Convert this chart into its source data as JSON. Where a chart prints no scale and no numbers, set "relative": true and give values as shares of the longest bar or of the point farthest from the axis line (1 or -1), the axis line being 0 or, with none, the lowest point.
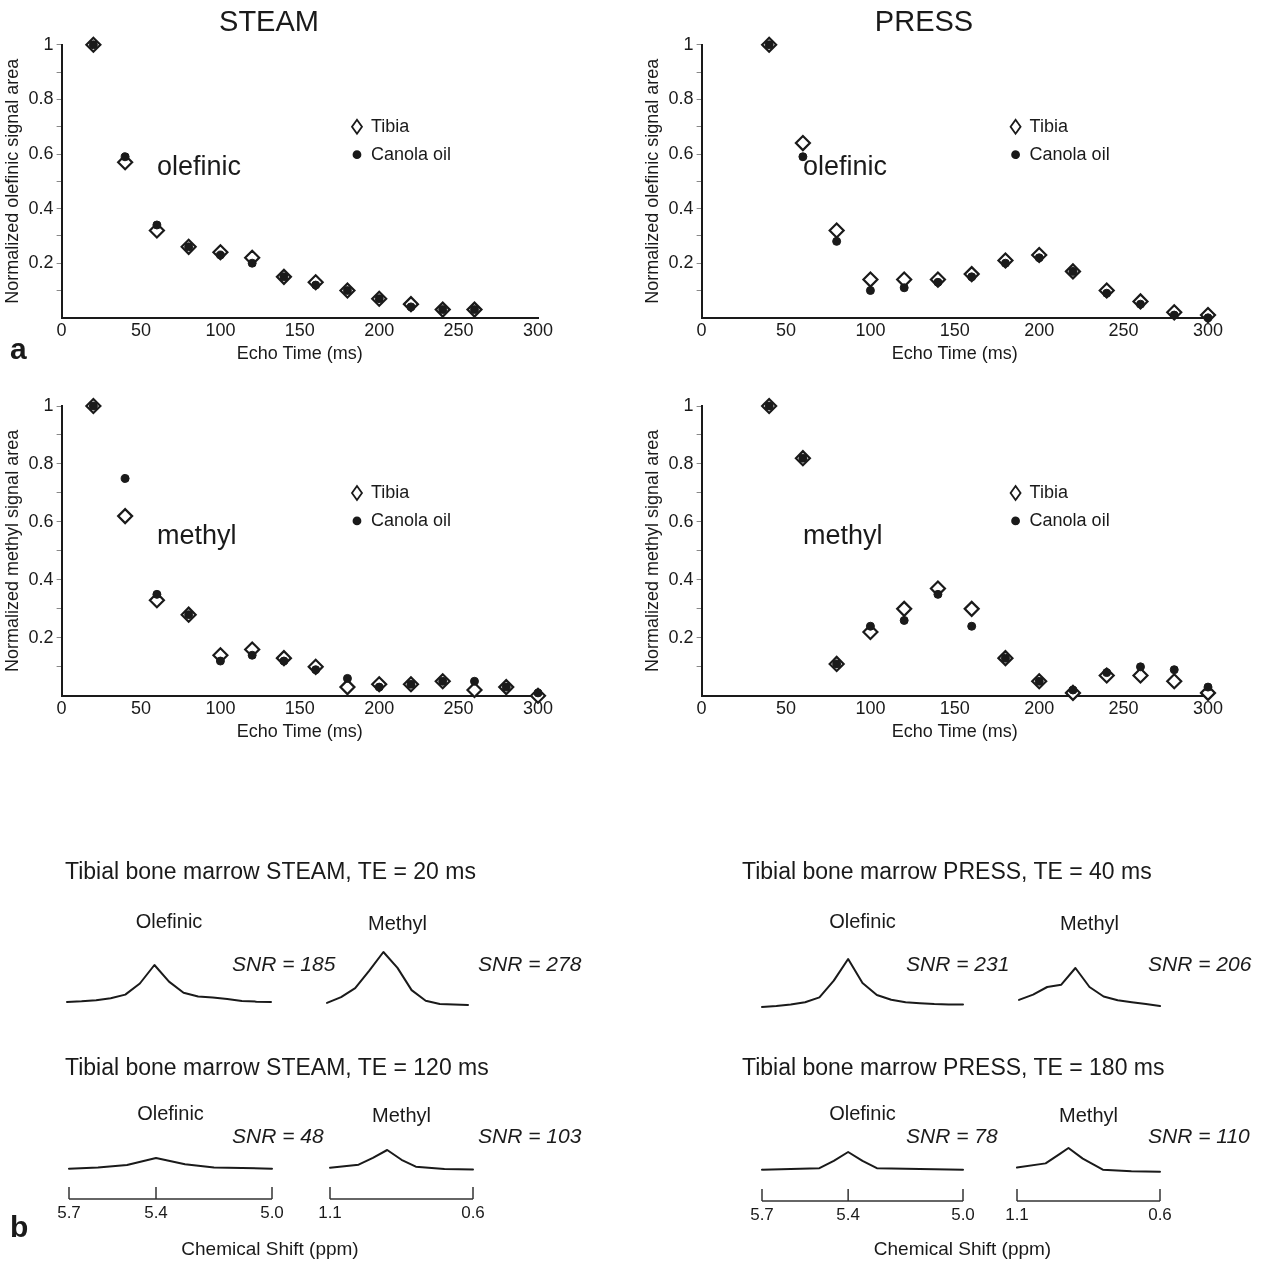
{
  "chart_data": [
    {
      "type": "scatter",
      "title": "STEAM",
      "xlabel": "Echo Time (ms)",
      "ylabel": "Normalized olefinic signal area",
      "xlim": [
        0,
        300
      ],
      "xticks": [
        0,
        50,
        100,
        150,
        200,
        250,
        300
      ],
      "ylim": [
        0,
        1
      ],
      "yticks": [
        {
          "value": 0.1,
          "label": null
        },
        0.2,
        {
          "value": 0.3,
          "label": null
        },
        0.4,
        {
          "value": 0.5,
          "label": null
        },
        0.6,
        {
          "value": 0.7,
          "label": null
        },
        0.8,
        {
          "value": 0.9,
          "label": null
        },
        1
      ],
      "legend": "right",
      "annotations": [
        "olefinic",
        "a"
      ],
      "x": [
        20,
        40,
        60,
        80,
        100,
        120,
        140,
        160,
        180,
        200,
        220,
        240,
        260
      ],
      "series": [
        {
          "name": "Tibia",
          "color": "#1a1a1a",
          "marker": "diamond",
          "values": [
            1.0,
            0.57,
            0.32,
            0.26,
            0.24,
            0.22,
            0.15,
            0.13,
            0.1,
            0.07,
            0.05,
            0.03,
            0.03
          ]
        },
        {
          "name": "Canola oil",
          "color": "#1a1a1a",
          "marker": "circle",
          "values": [
            1.0,
            0.59,
            0.34,
            0.26,
            0.23,
            0.2,
            0.15,
            0.12,
            0.1,
            0.07,
            0.04,
            0.03,
            0.03
          ]
        }
      ]
    },
    {
      "type": "scatter",
      "title": "PRESS",
      "xlabel": "Echo Time (ms)",
      "ylabel": "Normalized olefinic signal area",
      "xlim": [
        0,
        300
      ],
      "xticks": [
        0,
        50,
        100,
        150,
        200,
        250,
        300
      ],
      "ylim": [
        0,
        1
      ],
      "yticks": [
        {
          "value": 0.1,
          "label": null
        },
        0.2,
        {
          "value": 0.3,
          "label": null
        },
        0.4,
        {
          "value": 0.5,
          "label": null
        },
        0.6,
        {
          "value": 0.7,
          "label": null
        },
        0.8,
        {
          "value": 0.9,
          "label": null
        },
        1
      ],
      "legend": "right",
      "annotations": [
        "olefinic"
      ],
      "x": [
        40,
        60,
        80,
        100,
        120,
        140,
        160,
        180,
        200,
        220,
        240,
        260,
        280,
        300
      ],
      "series": [
        {
          "name": "Tibia",
          "color": "#1a1a1a",
          "marker": "diamond",
          "values": [
            1.0,
            0.64,
            0.32,
            0.14,
            0.14,
            0.14,
            0.16,
            0.21,
            0.23,
            0.17,
            0.1,
            0.06,
            0.02,
            0.01
          ]
        },
        {
          "name": "Canola oil",
          "color": "#1a1a1a",
          "marker": "circle",
          "values": [
            1.0,
            0.59,
            0.28,
            0.1,
            0.11,
            0.13,
            0.15,
            0.2,
            0.22,
            0.17,
            0.09,
            0.05,
            0.01,
            0.0
          ]
        }
      ]
    },
    {
      "type": "scatter",
      "xlabel": "Echo Time (ms)",
      "ylabel": "Normalized methyl signal area",
      "xlim": [
        0,
        300
      ],
      "xticks": [
        0,
        50,
        100,
        150,
        200,
        250,
        300
      ],
      "ylim": [
        0,
        1
      ],
      "yticks": [
        {
          "value": 0.1,
          "label": null
        },
        0.2,
        {
          "value": 0.3,
          "label": null
        },
        0.4,
        {
          "value": 0.5,
          "label": null
        },
        0.6,
        {
          "value": 0.7,
          "label": null
        },
        0.8,
        {
          "value": 0.9,
          "label": null
        },
        1
      ],
      "legend": "right",
      "annotations": [
        "methyl"
      ],
      "x": [
        20,
        40,
        60,
        80,
        100,
        120,
        140,
        160,
        180,
        200,
        220,
        240,
        260,
        280,
        300
      ],
      "series": [
        {
          "name": "Tibia",
          "color": "#1a1a1a",
          "marker": "diamond",
          "values": [
            1.0,
            0.62,
            0.33,
            0.28,
            0.14,
            0.16,
            0.13,
            0.1,
            0.03,
            0.04,
            0.04,
            0.05,
            0.02,
            0.03,
            0.0
          ]
        },
        {
          "name": "Canola oil",
          "color": "#1a1a1a",
          "marker": "circle",
          "values": [
            1.0,
            0.75,
            0.35,
            0.28,
            0.12,
            0.14,
            0.12,
            0.09,
            0.06,
            0.03,
            0.04,
            0.05,
            0.05,
            0.03,
            0.01
          ]
        }
      ]
    },
    {
      "type": "scatter",
      "xlabel": "Echo Time (ms)",
      "ylabel": "Normalized methyl signal area",
      "xlim": [
        0,
        300
      ],
      "xticks": [
        0,
        50,
        100,
        150,
        200,
        250,
        300
      ],
      "ylim": [
        0,
        1
      ],
      "yticks": [
        {
          "value": 0.1,
          "label": null
        },
        0.2,
        {
          "value": 0.3,
          "label": null
        },
        0.4,
        {
          "value": 0.5,
          "label": null
        },
        0.6,
        {
          "value": 0.7,
          "label": null
        },
        0.8,
        {
          "value": 0.9,
          "label": null
        },
        1
      ],
      "legend": "right",
      "annotations": [
        "methyl"
      ],
      "x": [
        40,
        60,
        80,
        100,
        120,
        140,
        160,
        180,
        200,
        220,
        240,
        260,
        280,
        300
      ],
      "series": [
        {
          "name": "Tibia",
          "color": "#1a1a1a",
          "marker": "diamond",
          "values": [
            1.0,
            0.82,
            0.11,
            0.22,
            0.3,
            0.37,
            0.3,
            0.13,
            0.05,
            0.01,
            0.07,
            0.07,
            0.05,
            0.01
          ]
        },
        {
          "name": "Canola oil",
          "color": "#1a1a1a",
          "marker": "circle",
          "values": [
            1.0,
            0.82,
            0.11,
            0.24,
            0.26,
            0.35,
            0.24,
            0.13,
            0.05,
            0.02,
            0.08,
            0.1,
            0.09,
            0.03
          ]
        }
      ]
    },
    {
      "type": "line",
      "relative": true,
      "title": "Tibial bone marrow STEAM, TE = 20 ms",
      "subtitle": "Olefinic",
      "annotations": [
        "SNR = 185"
      ],
      "tick_labels": false,
      "color": "#1a1a1a",
      "categories": [
        null,
        null,
        null,
        null,
        null,
        null,
        null,
        null,
        null,
        null,
        null,
        null,
        null,
        null,
        null
      ],
      "values": [
        0,
        0.02,
        0.05,
        0.1,
        0.2,
        0.5,
        1,
        0.55,
        0.25,
        0.15,
        0.12,
        0.08,
        0.03,
        0.01,
        0
      ]
    },
    {
      "type": "line",
      "relative": true,
      "subtitle": "Methyl",
      "annotations": [
        "SNR = 278"
      ],
      "tick_labels": false,
      "color": "#1a1a1a",
      "categories": [
        null,
        null,
        null,
        null,
        null,
        null,
        null,
        null,
        null,
        null,
        null
      ],
      "values": [
        0.04,
        0.15,
        0.32,
        0.65,
        1,
        0.7,
        0.28,
        0.08,
        0.02,
        0.01,
        0
      ]
    },
    {
      "type": "line",
      "relative": true,
      "title": "Tibial bone marrow PRESS, TE = 40 ms",
      "subtitle": "Olefinic",
      "annotations": [
        "SNR = 231"
      ],
      "tick_labels": false,
      "color": "#1a1a1a",
      "categories": [
        null,
        null,
        null,
        null,
        null,
        null,
        null,
        null,
        null,
        null,
        null,
        null,
        null,
        null,
        null
      ],
      "values": [
        0,
        0.02,
        0.05,
        0.1,
        0.2,
        0.55,
        1,
        0.5,
        0.25,
        0.15,
        0.1,
        0.08,
        0.06,
        0.05,
        0.05
      ]
    },
    {
      "type": "line",
      "relative": true,
      "subtitle": "Methyl",
      "annotations": [
        "SNR = 206"
      ],
      "tick_labels": false,
      "color": "#1a1a1a",
      "categories": [
        null,
        null,
        null,
        null,
        null,
        null,
        null,
        null,
        null,
        null,
        null
      ],
      "values": [
        0.16,
        0.3,
        0.5,
        0.56,
        1,
        0.5,
        0.25,
        0.15,
        0.1,
        0.05,
        0
      ]
    },
    {
      "type": "line",
      "relative": true,
      "title": "Tibial bone marrow STEAM, TE = 120 ms",
      "subtitle": "Olefinic",
      "xlabel": "Chemical Shift (ppm)",
      "annotations": [
        "SNR = 48",
        "b"
      ],
      "xlim": [
        5.7,
        5.0
      ],
      "xticks": [
        5.7,
        5.4,
        {
          "value": 5.0,
          "label": "5.0"
        }
      ],
      "tick_labels": "x",
      "color": "#1a1a1a",
      "x": [
        5.7,
        5.6,
        5.5,
        5.4,
        5.3,
        5.2,
        5.0
      ],
      "values": [
        0.74,
        0.77,
        0.83,
        1,
        0.85,
        0.77,
        0.74
      ]
    },
    {
      "type": "line",
      "relative": true,
      "subtitle": "Methyl",
      "annotations": [
        "SNR = 103"
      ],
      "xlim": [
        1.1,
        0.6
      ],
      "xticks": [
        1.1,
        0.6
      ],
      "tick_labels": "x",
      "color": "#1a1a1a",
      "x": [
        1.1,
        1.0,
        0.95,
        0.9,
        0.85,
        0.8,
        0.7,
        0.6
      ],
      "values": [
        0.64,
        0.7,
        0.84,
        1,
        0.8,
        0.66,
        0.61,
        0.6
      ]
    },
    {
      "type": "line",
      "relative": true,
      "title": "Tibial bone marrow PRESS, TE = 180 ms",
      "subtitle": "Olefinic",
      "xlabel": "Chemical Shift (ppm)",
      "annotations": [
        "SNR = 78"
      ],
      "xlim": [
        5.7,
        5.0
      ],
      "xticks": [
        5.7,
        5.4,
        {
          "value": 5.0,
          "label": "5.0"
        }
      ],
      "tick_labels": "x",
      "color": "#1a1a1a",
      "x": [
        5.7,
        5.5,
        5.45,
        5.4,
        5.35,
        5.3,
        5.0
      ],
      "values": [
        0.64,
        0.67,
        0.82,
        1,
        0.82,
        0.67,
        0.64
      ]
    },
    {
      "type": "line",
      "relative": true,
      "subtitle": "Methyl",
      "annotations": [
        "SNR = 110"
      ],
      "xlim": [
        1.1,
        0.6
      ],
      "xticks": [
        1.1,
        0.6
      ],
      "tick_labels": "x",
      "color": "#1a1a1a",
      "x": [
        1.1,
        1.0,
        0.95,
        0.92,
        0.87,
        0.8,
        0.7,
        0.6
      ],
      "values": [
        0.63,
        0.71,
        0.89,
        1,
        0.8,
        0.59,
        0.56,
        0.55
      ]
    }
  ]
}
